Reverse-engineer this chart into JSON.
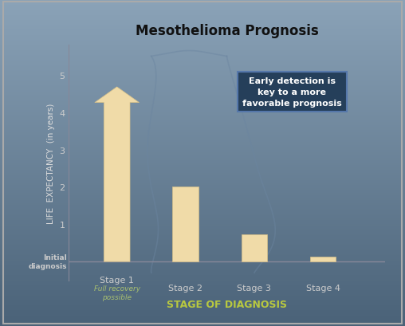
{
  "title": "Mesothelioma Prognosis",
  "xlabel": "STAGE OF DIAGNOSIS",
  "ylabel": "LIFE  EXPECTANCY  (in years)",
  "categories": [
    "Stage 1",
    "Stage 2",
    "Stage 3",
    "Stage 4"
  ],
  "stage1_sub": "Full recovery\npossible",
  "values": [
    5.1,
    2.0,
    0.72,
    0.13
  ],
  "bar_color": "#F0DBA8",
  "bar_edge_color": "#D4BF88",
  "arrow_color": "#F0DBA8",
  "arrow_edge_color": "#D4BF88",
  "yticks": [
    1,
    2,
    3,
    4,
    5
  ],
  "ylim": [
    -0.5,
    5.8
  ],
  "xlim": [
    -0.7,
    3.9
  ],
  "ytick_labels": [
    "1",
    "2",
    "3",
    "4",
    "5"
  ],
  "y_extra_label": "Initial\ndiagnosis",
  "annotation_text": "Early detection is\nkey to a more\nfavorable prognosis",
  "annotation_bg": "#253F5A",
  "annotation_text_color": "#FFFFFF",
  "bg_top": "#8BA3B8",
  "bg_bottom": "#4A6278",
  "title_color": "#111111",
  "xlabel_color": "#B8C840",
  "ylabel_color": "#DDDDDD",
  "tick_color": "#CCCCCC",
  "spine_color": "#888899",
  "silhouette_color": "#6B85A0",
  "border_color": "#AAAAAA"
}
